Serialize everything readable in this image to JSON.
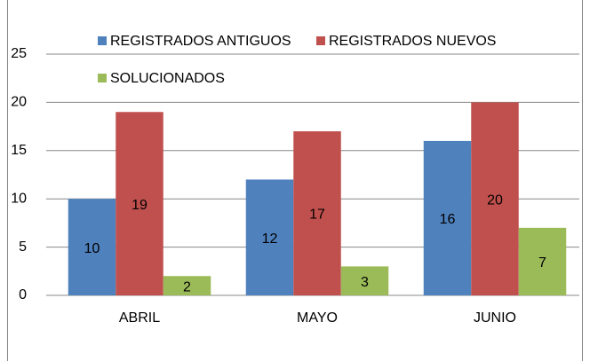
{
  "chart_data": {
    "type": "bar",
    "categories": [
      "ABRIL",
      "MAYO",
      "JUNIO"
    ],
    "series": [
      {
        "name": "REGISTRADOS ANTIGUOS",
        "color": "#4f81bd",
        "values": [
          10,
          12,
          16
        ]
      },
      {
        "name": "REGISTRADOS NUEVOS",
        "color": "#c0504d",
        "values": [
          19,
          17,
          20
        ]
      },
      {
        "name": "SOLUCIONADOS",
        "color": "#9bbb59",
        "values": [
          2,
          3,
          7
        ]
      }
    ],
    "ylim": [
      0,
      25
    ],
    "yticks": [
      0,
      5,
      10,
      15,
      20,
      25
    ],
    "grid": true,
    "legend": "top"
  }
}
